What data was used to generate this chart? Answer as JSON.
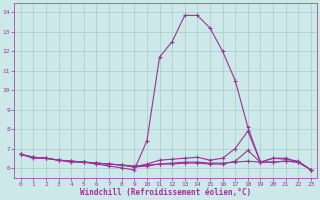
{
  "xlabel": "Windchill (Refroidissement éolien,°C)",
  "x": [
    0,
    1,
    2,
    3,
    4,
    5,
    6,
    7,
    8,
    9,
    10,
    11,
    12,
    13,
    14,
    15,
    16,
    17,
    18,
    19,
    20,
    21,
    22,
    23
  ],
  "line1": [
    6.7,
    6.5,
    6.5,
    6.4,
    6.3,
    6.3,
    6.2,
    6.1,
    6.0,
    5.9,
    7.4,
    11.7,
    12.5,
    13.85,
    13.85,
    13.2,
    12.0,
    10.5,
    8.1,
    6.3,
    6.5,
    6.5,
    6.3,
    5.9
  ],
  "line2": [
    6.7,
    6.55,
    6.5,
    6.4,
    6.35,
    6.3,
    6.25,
    6.2,
    6.15,
    6.1,
    6.15,
    6.2,
    6.25,
    6.3,
    6.3,
    6.25,
    6.25,
    6.3,
    6.35,
    6.3,
    6.3,
    6.35,
    6.3,
    5.9
  ],
  "line3": [
    6.7,
    6.55,
    6.5,
    6.4,
    6.35,
    6.3,
    6.25,
    6.2,
    6.15,
    6.05,
    6.1,
    6.2,
    6.2,
    6.25,
    6.25,
    6.2,
    6.2,
    6.35,
    6.9,
    6.3,
    6.3,
    6.35,
    6.3,
    5.9
  ],
  "line4": [
    6.7,
    6.55,
    6.5,
    6.4,
    6.35,
    6.3,
    6.25,
    6.2,
    6.15,
    6.05,
    6.2,
    6.4,
    6.45,
    6.5,
    6.55,
    6.4,
    6.5,
    7.0,
    7.9,
    6.3,
    6.5,
    6.45,
    6.35,
    5.9
  ],
  "line_color": "#993399",
  "bg_color": "#cce8e8",
  "grid_color": "#aacccc",
  "ylim": [
    5.5,
    14.5
  ],
  "xlim": [
    -0.5,
    23.5
  ],
  "yticks": [
    6,
    7,
    8,
    9,
    10,
    11,
    12,
    13,
    14
  ],
  "xticks": [
    0,
    1,
    2,
    3,
    4,
    5,
    6,
    7,
    8,
    9,
    10,
    11,
    12,
    13,
    14,
    15,
    16,
    17,
    18,
    19,
    20,
    21,
    22,
    23
  ]
}
